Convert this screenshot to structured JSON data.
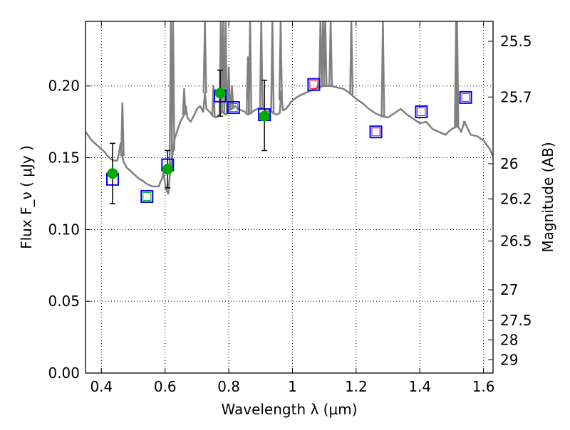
{
  "chart_data": {
    "type": "scatter",
    "title": "",
    "xlabel": "Wavelength  λ (μm)",
    "ylabel": "Flux  F_ν  ( μJy )",
    "ylabel_right": "Magnitude (AB)",
    "xlim": [
      0.35,
      1.63
    ],
    "ylim": [
      0.0,
      0.245
    ],
    "grid": true,
    "x_ticks": [
      0.4,
      0.6,
      0.8,
      1.0,
      1.2,
      1.4,
      1.6
    ],
    "x_tick_labels": [
      "0.4",
      "0.6",
      "0.8",
      "1",
      "1.2",
      "1.4",
      "1.6"
    ],
    "y_ticks": [
      0.0,
      0.05,
      0.1,
      0.15,
      0.2
    ],
    "y_tick_labels": [
      "0.00",
      "0.05",
      "0.10",
      "0.15",
      "0.20"
    ],
    "right_axis_ticks": [
      {
        "label": "25.5",
        "flux": 0.2311
      },
      {
        "label": "25.7",
        "flux": 0.1923
      },
      {
        "label": "26",
        "flux": 0.1458
      },
      {
        "label": "26.2",
        "flux": 0.1213
      },
      {
        "label": "26.5",
        "flux": 0.092
      },
      {
        "label": "27",
        "flux": 0.058
      },
      {
        "label": "27.5",
        "flux": 0.0366
      },
      {
        "label": "28",
        "flux": 0.0231
      },
      {
        "label": "29",
        "flux": 0.0092
      }
    ],
    "colors": {
      "spectrum": "#808080",
      "model_square": "#0000ff",
      "observed_square": "#ff0000",
      "observed_square_alt": "#00aa00",
      "measured_point": "#00aa00",
      "error_bar": "#000000",
      "grid": "#000000"
    },
    "series": [
      {
        "role": "spectrum",
        "style": "line",
        "x": [
          0.35,
          0.36,
          0.37,
          0.38,
          0.39,
          0.4,
          0.41,
          0.42,
          0.43,
          0.44,
          0.45,
          0.455,
          0.46,
          0.465,
          0.47,
          0.48,
          0.49,
          0.5,
          0.51,
          0.52,
          0.53,
          0.54,
          0.55,
          0.56,
          0.57,
          0.58,
          0.585,
          0.59,
          0.595,
          0.6,
          0.605,
          0.61,
          0.615,
          0.62,
          0.625,
          0.63,
          0.64,
          0.65,
          0.66,
          0.665,
          0.67,
          0.68,
          0.69,
          0.7,
          0.71,
          0.72,
          0.725,
          0.73,
          0.74,
          0.75,
          0.76,
          0.77,
          0.78,
          0.79,
          0.8,
          0.81,
          0.82,
          0.83,
          0.84,
          0.85,
          0.86,
          0.87,
          0.88,
          0.89,
          0.9,
          0.91,
          0.92,
          0.93,
          0.94,
          0.95,
          0.96,
          0.965,
          0.97,
          0.98,
          0.99,
          1.0,
          1.02,
          1.04,
          1.06,
          1.08,
          1.1,
          1.12,
          1.14,
          1.16,
          1.18,
          1.2,
          1.22,
          1.24,
          1.26,
          1.28,
          1.3,
          1.32,
          1.34,
          1.36,
          1.38,
          1.4,
          1.42,
          1.44,
          1.46,
          1.48,
          1.5,
          1.52,
          1.53,
          1.54,
          1.56,
          1.58,
          1.6,
          1.62,
          1.63
        ],
        "y": [
          0.168,
          0.165,
          0.162,
          0.16,
          0.158,
          0.156,
          0.154,
          0.151,
          0.149,
          0.148,
          0.148,
          0.153,
          0.16,
          0.152,
          0.147,
          0.143,
          0.141,
          0.139,
          0.137,
          0.135,
          0.134,
          0.132,
          0.131,
          0.13,
          0.13,
          0.13,
          0.133,
          0.135,
          0.14,
          0.132,
          0.127,
          0.125,
          0.138,
          0.147,
          0.155,
          0.163,
          0.17,
          0.176,
          0.18,
          0.186,
          0.178,
          0.175,
          0.179,
          0.184,
          0.186,
          0.182,
          0.195,
          0.184,
          0.182,
          0.179,
          0.178,
          0.18,
          0.182,
          0.18,
          0.183,
          0.184,
          0.186,
          0.184,
          0.183,
          0.182,
          0.18,
          0.181,
          0.183,
          0.184,
          0.185,
          0.184,
          0.182,
          0.183,
          0.181,
          0.18,
          0.181,
          0.196,
          0.183,
          0.184,
          0.187,
          0.19,
          0.193,
          0.195,
          0.197,
          0.199,
          0.2,
          0.2,
          0.199,
          0.198,
          0.195,
          0.191,
          0.188,
          0.184,
          0.181,
          0.179,
          0.178,
          0.181,
          0.184,
          0.18,
          0.177,
          0.174,
          0.175,
          0.17,
          0.168,
          0.166,
          0.17,
          0.172,
          0.168,
          0.175,
          0.166,
          0.165,
          0.162,
          0.156,
          0.151
        ],
        "spikes": [
          {
            "x": 0.466,
            "peak": 0.188
          },
          {
            "x": 0.618,
            "peak": 0.245
          },
          {
            "x": 0.625,
            "peak": 0.245
          },
          {
            "x": 0.66,
            "peak": 0.198
          },
          {
            "x": 0.725,
            "peak": 0.245
          },
          {
            "x": 0.752,
            "peak": 0.2
          },
          {
            "x": 0.775,
            "peak": 0.245
          },
          {
            "x": 0.782,
            "peak": 0.245
          },
          {
            "x": 0.79,
            "peak": 0.245
          },
          {
            "x": 0.8,
            "peak": 0.213
          },
          {
            "x": 0.81,
            "peak": 0.2
          },
          {
            "x": 0.86,
            "peak": 0.22
          },
          {
            "x": 0.867,
            "peak": 0.245
          },
          {
            "x": 0.902,
            "peak": 0.245
          },
          {
            "x": 0.937,
            "peak": 0.245
          },
          {
            "x": 0.963,
            "peak": 0.245
          },
          {
            "x": 1.088,
            "peak": 0.245
          },
          {
            "x": 1.096,
            "peak": 0.245
          },
          {
            "x": 1.103,
            "peak": 0.245
          },
          {
            "x": 1.12,
            "peak": 0.245
          },
          {
            "x": 1.185,
            "peak": 0.245
          },
          {
            "x": 1.284,
            "peak": 0.245
          },
          {
            "x": 1.514,
            "peak": 0.245
          },
          {
            "x": 1.517,
            "peak": 0.245
          },
          {
            "x": 1.54,
            "peak": 0.175
          }
        ]
      },
      {
        "role": "model",
        "style": "blue-square",
        "x": [
          0.435,
          0.543,
          0.608,
          0.773,
          0.815,
          0.912,
          1.067,
          1.262,
          1.405,
          1.544
        ],
        "y": [
          0.135,
          0.123,
          0.145,
          0.193,
          0.185,
          0.18,
          0.201,
          0.168,
          0.182,
          0.192
        ]
      },
      {
        "role": "observed",
        "style": "small-square",
        "x": [
          0.543,
          0.815,
          1.067,
          1.262,
          1.405,
          1.544
        ],
        "y": [
          0.123,
          0.185,
          0.201,
          0.168,
          0.182,
          0.192
        ],
        "colors": [
          "#00aa00",
          "#00aa00",
          "#ff0000",
          "#ff0000",
          "#ff0000",
          "#ff0000"
        ]
      },
      {
        "role": "measured",
        "style": "green-circle",
        "x": [
          0.435,
          0.608,
          0.773,
          0.912
        ],
        "y": [
          0.139,
          0.142,
          0.195,
          0.179
        ],
        "err_low": [
          0.118,
          0.129,
          0.179,
          0.155
        ],
        "err_high": [
          0.16,
          0.155,
          0.211,
          0.204
        ]
      }
    ]
  }
}
